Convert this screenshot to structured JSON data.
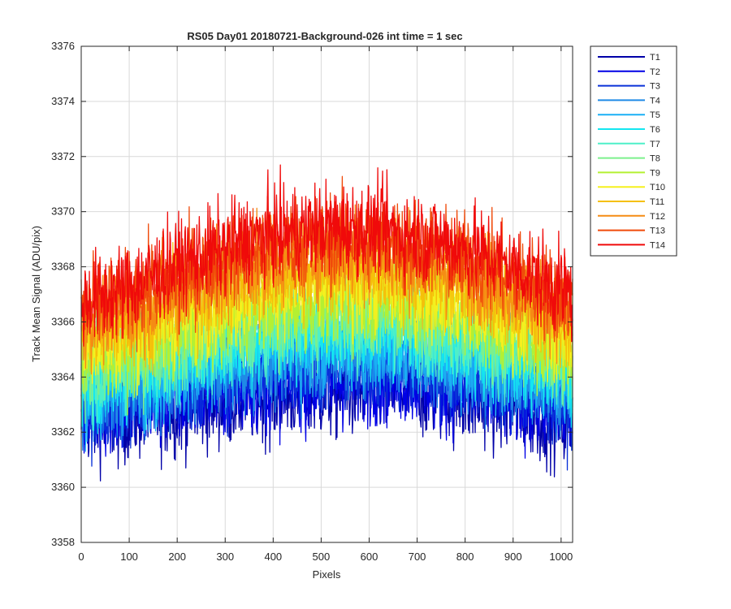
{
  "chart_data": {
    "type": "line",
    "title": "RS05 Day01 20180721-Background-026 int time = 1 sec",
    "xlabel": "Pixels",
    "ylabel": "Track Mean Signal (ADU/pix)",
    "xlim": [
      0,
      1024
    ],
    "ylim": [
      3358,
      3376
    ],
    "x_ticks": [
      "0",
      "100",
      "200",
      "300",
      "400",
      "500",
      "600",
      "700",
      "800",
      "900",
      "1000"
    ],
    "y_ticks": [
      "3358",
      "3360",
      "3362",
      "3364",
      "3366",
      "3368",
      "3370",
      "3372",
      "3374",
      "3376"
    ],
    "grid": true,
    "legend_placement": "outside-top-right",
    "x": [
      0,
      64,
      128,
      192,
      256,
      320,
      384,
      448,
      512,
      576,
      640,
      704,
      768,
      832,
      896,
      960,
      1024
    ],
    "series": [
      {
        "name": "T1",
        "color": "#0000a8",
        "values": [
          3362.5,
          3362.4,
          3362.7,
          3362.8,
          3363.0,
          3363.2,
          3363.3,
          3363.4,
          3363.4,
          3363.5,
          3363.6,
          3363.5,
          3363.3,
          3363.1,
          3362.9,
          3362.6,
          3362.3
        ]
      },
      {
        "name": "T2",
        "color": "#0000e6",
        "values": [
          3362.8,
          3362.8,
          3363.0,
          3363.2,
          3363.4,
          3363.6,
          3363.7,
          3363.8,
          3363.8,
          3363.9,
          3364.0,
          3363.9,
          3363.7,
          3363.5,
          3363.3,
          3363.0,
          3362.7
        ]
      },
      {
        "name": "T3",
        "color": "#0a32d8",
        "values": [
          3363.0,
          3363.1,
          3363.3,
          3363.6,
          3363.8,
          3364.0,
          3364.1,
          3364.3,
          3364.3,
          3364.4,
          3364.4,
          3364.3,
          3364.1,
          3363.9,
          3363.7,
          3363.4,
          3363.1
        ]
      },
      {
        "name": "T4",
        "color": "#1f8ae6",
        "values": [
          3363.3,
          3363.4,
          3363.6,
          3363.9,
          3364.2,
          3364.4,
          3364.6,
          3364.7,
          3364.8,
          3364.8,
          3364.8,
          3364.7,
          3364.5,
          3364.3,
          3364.0,
          3363.7,
          3363.4
        ]
      },
      {
        "name": "T5",
        "color": "#1ab0f5",
        "values": [
          3363.6,
          3363.7,
          3363.9,
          3364.2,
          3364.5,
          3364.8,
          3365.0,
          3365.2,
          3365.2,
          3365.3,
          3365.2,
          3365.1,
          3364.9,
          3364.6,
          3364.4,
          3364.1,
          3363.7
        ]
      },
      {
        "name": "T6",
        "color": "#14e6f0",
        "values": [
          3363.9,
          3364.0,
          3364.3,
          3364.6,
          3364.9,
          3365.2,
          3365.4,
          3365.6,
          3365.6,
          3365.7,
          3365.6,
          3365.5,
          3365.3,
          3365.0,
          3364.7,
          3364.4,
          3364.0
        ]
      },
      {
        "name": "T7",
        "color": "#4ef0c8",
        "values": [
          3364.1,
          3364.3,
          3364.6,
          3364.9,
          3365.2,
          3365.5,
          3365.8,
          3365.9,
          3366.0,
          3366.0,
          3366.0,
          3365.8,
          3365.6,
          3365.3,
          3365.0,
          3364.7,
          3364.3
        ]
      },
      {
        "name": "T8",
        "color": "#7cf08c",
        "values": [
          3364.4,
          3364.6,
          3364.9,
          3365.2,
          3365.6,
          3365.9,
          3366.1,
          3366.3,
          3366.4,
          3366.4,
          3366.3,
          3366.2,
          3366.0,
          3365.7,
          3365.4,
          3365.0,
          3364.6
        ]
      },
      {
        "name": "T9",
        "color": "#b4f032",
        "values": [
          3364.8,
          3365.0,
          3365.3,
          3365.6,
          3366.0,
          3366.3,
          3366.6,
          3366.8,
          3366.8,
          3366.9,
          3366.8,
          3366.6,
          3366.4,
          3366.1,
          3365.8,
          3365.4,
          3365.0
        ]
      },
      {
        "name": "T10",
        "color": "#f5f01e",
        "values": [
          3365.2,
          3365.4,
          3365.7,
          3366.1,
          3366.5,
          3366.8,
          3367.1,
          3367.3,
          3367.3,
          3367.4,
          3367.3,
          3367.1,
          3366.9,
          3366.6,
          3366.2,
          3365.8,
          3365.4
        ]
      },
      {
        "name": "T11",
        "color": "#f5c00a",
        "values": [
          3365.6,
          3365.8,
          3366.2,
          3366.6,
          3367.0,
          3367.3,
          3367.6,
          3367.8,
          3367.9,
          3367.9,
          3367.8,
          3367.6,
          3367.4,
          3367.1,
          3366.7,
          3366.3,
          3365.8
        ]
      },
      {
        "name": "T12",
        "color": "#f58c14",
        "values": [
          3366.0,
          3366.3,
          3366.7,
          3367.1,
          3367.5,
          3367.9,
          3368.2,
          3368.4,
          3368.5,
          3368.5,
          3368.4,
          3368.2,
          3367.9,
          3367.6,
          3367.2,
          3366.8,
          3366.3
        ]
      },
      {
        "name": "T13",
        "color": "#f04a0a",
        "values": [
          3366.4,
          3366.7,
          3367.1,
          3367.6,
          3368.0,
          3368.4,
          3368.7,
          3368.9,
          3369.0,
          3369.0,
          3368.9,
          3368.7,
          3368.4,
          3368.1,
          3367.7,
          3367.2,
          3366.7
        ]
      },
      {
        "name": "T14",
        "color": "#f00a0a",
        "values": [
          3366.7,
          3367.0,
          3367.5,
          3368.0,
          3368.4,
          3368.8,
          3369.1,
          3369.3,
          3369.4,
          3369.4,
          3369.3,
          3369.1,
          3368.8,
          3368.5,
          3368.0,
          3367.5,
          3367.0
        ]
      }
    ]
  }
}
